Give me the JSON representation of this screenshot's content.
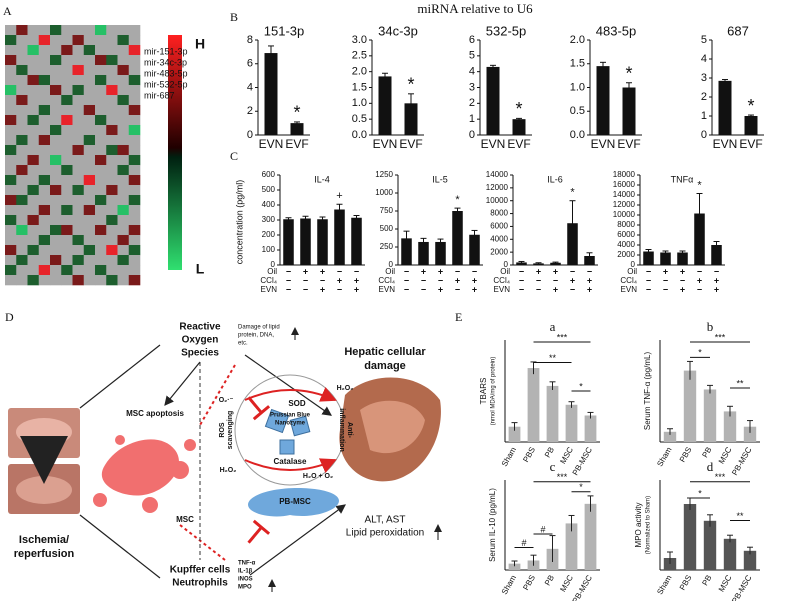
{
  "labels": [
    "A",
    "B",
    "C",
    "D",
    "E"
  ],
  "heatmap": {
    "high": "H",
    "low": "L",
    "genes": [
      "mir-151-3p",
      "mir-34c-3p",
      "mir-483-5p",
      "mir-532-5p",
      "mir-687"
    ],
    "palette": [
      "#26c066",
      "#1d5e2e",
      "#a9a9a9",
      "#7a1a1a",
      "#e8232a"
    ],
    "values": [
      [
        0,
        1,
        0,
        0,
        -1,
        0,
        0,
        0,
        -2,
        0,
        0,
        0
      ],
      [
        -1,
        0,
        0,
        2,
        0,
        0,
        1,
        0,
        0,
        0,
        -1,
        0
      ],
      [
        0,
        0,
        -2,
        0,
        0,
        1,
        0,
        -1,
        0,
        0,
        0,
        2
      ],
      [
        1,
        0,
        0,
        0,
        -1,
        0,
        0,
        0,
        1,
        -1,
        0,
        0
      ],
      [
        0,
        -1,
        0,
        0,
        0,
        0,
        2,
        0,
        0,
        0,
        1,
        0
      ],
      [
        0,
        0,
        1,
        -1,
        0,
        0,
        0,
        0,
        -1,
        0,
        0,
        -1
      ],
      [
        -2,
        0,
        0,
        0,
        1,
        0,
        -1,
        0,
        0,
        2,
        0,
        0
      ],
      [
        0,
        1,
        0,
        0,
        0,
        -1,
        0,
        0,
        0,
        0,
        -1,
        0
      ],
      [
        0,
        0,
        0,
        -1,
        0,
        0,
        0,
        1,
        0,
        0,
        0,
        1
      ],
      [
        1,
        0,
        -1,
        0,
        0,
        2,
        0,
        0,
        -1,
        0,
        0,
        0
      ],
      [
        0,
        0,
        0,
        0,
        -1,
        0,
        0,
        0,
        0,
        1,
        0,
        -2
      ],
      [
        0,
        -1,
        0,
        1,
        0,
        0,
        0,
        -1,
        0,
        0,
        0,
        0
      ],
      [
        -1,
        0,
        0,
        0,
        0,
        0,
        1,
        0,
        0,
        -1,
        1,
        0
      ],
      [
        0,
        0,
        1,
        0,
        -2,
        0,
        0,
        0,
        1,
        0,
        0,
        -1
      ],
      [
        0,
        1,
        0,
        0,
        0,
        -1,
        0,
        0,
        0,
        0,
        -1,
        0
      ],
      [
        -1,
        0,
        0,
        -1,
        0,
        0,
        0,
        2,
        0,
        0,
        0,
        1
      ],
      [
        0,
        0,
        -1,
        0,
        1,
        0,
        -1,
        0,
        0,
        1,
        0,
        0
      ],
      [
        1,
        -1,
        0,
        0,
        0,
        0,
        0,
        0,
        -1,
        0,
        0,
        -1
      ],
      [
        0,
        0,
        0,
        1,
        0,
        -1,
        0,
        1,
        0,
        0,
        -2,
        0
      ],
      [
        -1,
        0,
        1,
        0,
        0,
        0,
        0,
        0,
        0,
        -1,
        0,
        0
      ],
      [
        0,
        -2,
        0,
        0,
        -1,
        1,
        0,
        0,
        1,
        0,
        0,
        1
      ],
      [
        0,
        0,
        0,
        -1,
        0,
        0,
        -1,
        0,
        0,
        0,
        1,
        0
      ],
      [
        1,
        0,
        -1,
        0,
        0,
        0,
        0,
        -1,
        0,
        2,
        0,
        -1
      ],
      [
        0,
        -1,
        0,
        0,
        1,
        0,
        -1,
        0,
        0,
        0,
        -1,
        0
      ],
      [
        -1,
        0,
        0,
        2,
        0,
        -1,
        0,
        0,
        -1,
        0,
        0,
        0
      ],
      [
        0,
        0,
        -1,
        0,
        0,
        0,
        1,
        0,
        0,
        -1,
        0,
        1
      ]
    ]
  },
  "mirna": {
    "title": "miRNA relative to U6",
    "categories": [
      "EVN",
      "EVF"
    ],
    "color": "#111111",
    "charts": [
      {
        "title": "151-3p",
        "values": [
          6.9,
          1.0
        ],
        "errors": [
          0.6,
          0.1
        ],
        "ylim": [
          0,
          8
        ],
        "yticks": [
          0,
          2,
          4,
          6,
          8
        ],
        "marker": "*"
      },
      {
        "title": "34c-3p",
        "values": [
          1.85,
          1.0
        ],
        "errors": [
          0.1,
          0.3
        ],
        "ylim": [
          0,
          3
        ],
        "yticks": [
          {
            "value": 0,
            "label": "0.0"
          },
          {
            "value": 0.5,
            "label": "0.5"
          },
          {
            "value": 1,
            "label": "1.0"
          },
          {
            "value": 1.5,
            "label": "1.5"
          },
          {
            "value": 2,
            "label": "2.0"
          },
          {
            "value": 2.5,
            "label": "2.5"
          },
          {
            "value": 3,
            "label": "3.0"
          }
        ],
        "marker": "*"
      },
      {
        "title": "532-5p",
        "values": [
          4.3,
          1.0
        ],
        "errors": [
          0.1,
          0.05
        ],
        "ylim": [
          0,
          6
        ],
        "yticks": [
          0,
          1,
          2,
          3,
          4,
          5,
          6
        ],
        "marker": "*"
      },
      {
        "title": "483-5p",
        "values": [
          1.45,
          1.0
        ],
        "errors": [
          0.08,
          0.1
        ],
        "ylim": [
          0,
          2
        ],
        "yticks": [
          {
            "value": 0,
            "label": "0.0"
          },
          {
            "value": 0.5,
            "label": "0.5"
          },
          {
            "value": 1,
            "label": "1.0"
          },
          {
            "value": 1.5,
            "label": "1.5"
          },
          {
            "value": 2,
            "label": "2.0"
          }
        ],
        "marker": "*"
      },
      {
        "title": "687",
        "values": [
          2.85,
          1.0
        ],
        "errors": [
          0.07,
          0.05
        ],
        "ylim": [
          0,
          5
        ],
        "yticks": [
          0,
          1,
          2,
          3,
          4,
          5
        ],
        "marker": "*"
      }
    ]
  },
  "cytokines": {
    "ylabel": "concentration (pg/ml)",
    "color": "#111111",
    "conditions": [
      {
        "name": "Oil",
        "signs": [
          "−",
          "+",
          "+",
          "−",
          "−"
        ]
      },
      {
        "name": "CCl₄",
        "signs": [
          "−",
          "−",
          "−",
          "+",
          "+"
        ]
      },
      {
        "name": "EVN",
        "signs": [
          "−",
          "−",
          "+",
          "−",
          "+"
        ]
      }
    ],
    "charts": [
      {
        "title": "IL-4",
        "values": [
          305,
          310,
          305,
          370,
          315
        ],
        "errors": [
          10,
          15,
          15,
          35,
          15
        ],
        "ylim": [
          0,
          600
        ],
        "yticks": [
          0,
          100,
          200,
          300,
          400,
          500,
          600
        ],
        "marker": "+"
      },
      {
        "title": "IL-5",
        "values": [
          370,
          320,
          320,
          750,
          420
        ],
        "errors": [
          100,
          50,
          40,
          40,
          60
        ],
        "ylim": [
          0,
          1250
        ],
        "yticks": [
          0,
          250,
          500,
          750,
          1000,
          1250
        ],
        "marker": "*"
      },
      {
        "title": "IL-6",
        "values": [
          400,
          250,
          350,
          6500,
          1400
        ],
        "errors": [
          150,
          100,
          100,
          3500,
          500
        ],
        "ylim": [
          0,
          14000
        ],
        "yticks": [
          0,
          2000,
          4000,
          6000,
          8000,
          10000,
          12000,
          14000
        ],
        "marker": "*"
      },
      {
        "title": "TNFα",
        "values": [
          2700,
          2500,
          2500,
          10300,
          4000
        ],
        "errors": [
          400,
          300,
          300,
          4000,
          700
        ],
        "ylim": [
          0,
          18000
        ],
        "yticks": [
          0,
          2000,
          4000,
          6000,
          8000,
          10000,
          12000,
          14000,
          16000,
          18000
        ],
        "marker": "*"
      }
    ]
  },
  "diagram": {
    "ros": [
      "Reactive",
      "Oxygen",
      "Species"
    ],
    "damage": [
      "Damage of lipid",
      "protein, DNA,",
      "etc."
    ],
    "apoptosis": "MSC apoptosis",
    "msc": "MSC",
    "ischemia": [
      "Ischemia/",
      "reperfusion"
    ],
    "kupffer": [
      "Kupffer cells",
      "Neutrophils"
    ],
    "markers": [
      "TNF-α",
      "IL-1β",
      "iNOS",
      "MPO"
    ],
    "sod": "SOD",
    "nanozyme": [
      "Prussian Blue",
      "Nanozyme"
    ],
    "catalase": "Catalase",
    "pbmsc": "PB-MSC",
    "scavenging": [
      "ROS",
      "scavenging"
    ],
    "anti": [
      "Anti-",
      "inflammation"
    ],
    "superoxide": "O₂·⁻",
    "peroxide": "H₂O₂",
    "water": "H₂O + O₂",
    "hepatic": [
      "Hepatic cellular",
      "damage"
    ],
    "enzymes": [
      "ALT, AST",
      "Lipid peroxidation"
    ]
  },
  "treatment": {
    "categories": [
      "Sham",
      "PBS",
      "PB",
      "MSC",
      "PB-MSC"
    ],
    "charts": [
      {
        "title": "a",
        "ylabel": [
          "TBARS",
          "(nmol MDA/mg of protein)"
        ],
        "values": [
          30,
          145,
          110,
          73,
          52
        ],
        "errors": [
          8,
          12,
          8,
          6,
          6
        ],
        "ylim": [
          0,
          200
        ],
        "color": "#b3b3b3",
        "significance": [
          "***",
          "**",
          "*"
        ]
      },
      {
        "title": "b",
        "ylabel": [
          "Serum TNF-α (pg/mL)"
        ],
        "values": [
          20,
          140,
          103,
          60,
          30
        ],
        "errors": [
          6,
          18,
          8,
          10,
          12
        ],
        "ylim": [
          0,
          200
        ],
        "color": "#b3b3b3",
        "significance": [
          "*",
          "***",
          "**"
        ]
      },
      {
        "title": "c",
        "ylabel": [
          "Serum IL-10 (pg/mL)"
        ],
        "values": [
          12,
          18,
          40,
          88,
          125
        ],
        "errors": [
          5,
          10,
          25,
          15,
          15
        ],
        "ylim": [
          0,
          170
        ],
        "color": "#b3b3b3",
        "significance": [
          "***",
          "*",
          "#",
          "#"
        ]
      },
      {
        "title": "d",
        "ylabel": [
          "MPO activity",
          "(Normalized to Sham)"
        ],
        "values": [
          1,
          5.5,
          4.1,
          2.6,
          1.6
        ],
        "errors": [
          0.5,
          0.5,
          0.5,
          0.3,
          0.3
        ],
        "ylim": [
          0,
          7.5
        ],
        "color": "#555555",
        "significance": [
          "*",
          "***",
          "**"
        ]
      }
    ]
  }
}
